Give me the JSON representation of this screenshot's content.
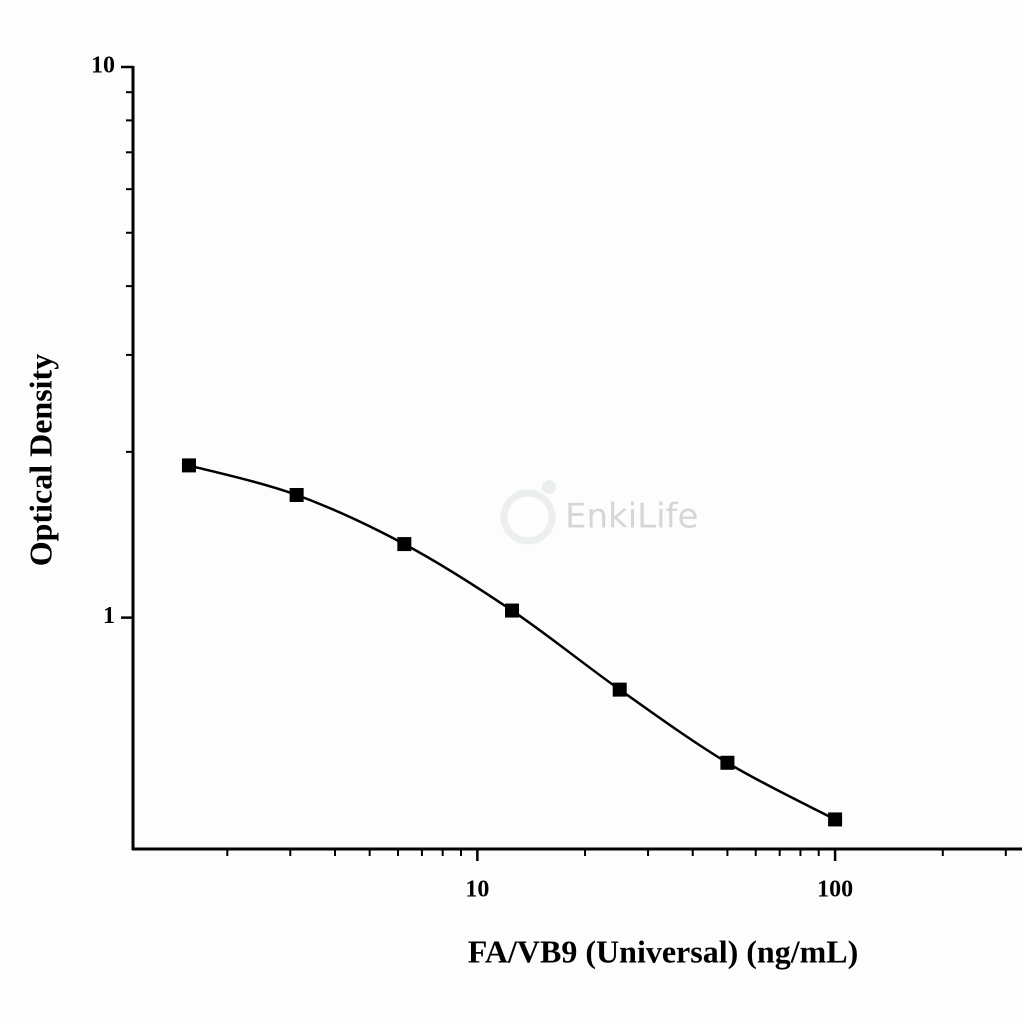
{
  "chart_data": {
    "type": "scatter",
    "x_label": "FA/VB9 (Universal) (ng/mL)",
    "y_label": "Optical Density",
    "watermark": "EnkiLife",
    "x": [
      1.5625,
      3.125,
      6.25,
      12.5,
      25,
      50,
      100
    ],
    "series": [
      {
        "color": "#000000",
        "values": [
          1.89,
          1.67,
          1.36,
          1.03,
          0.74,
          0.545,
          0.43
        ]
      }
    ],
    "xscale": "log",
    "yscale": "log",
    "xlim": [
      1.09,
      333
    ],
    "ylim": [
      0.38,
      10
    ],
    "xticks": [
      10,
      100
    ],
    "yticks": [
      1,
      10
    ],
    "xminorticks": [
      2,
      3,
      4,
      5,
      6,
      7,
      8,
      9,
      20,
      30,
      40,
      50,
      60,
      70,
      80,
      90,
      200,
      300
    ],
    "yminorticks": [
      2,
      3,
      4,
      5,
      6,
      7,
      8,
      9
    ],
    "curve": true
  }
}
